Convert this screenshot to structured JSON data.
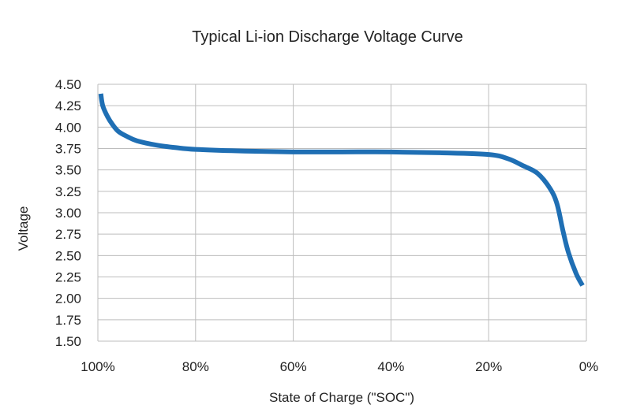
{
  "chart_data": {
    "type": "line",
    "title": "Typical Li-ion Discharge Voltage Curve",
    "xlabel": "State of Charge (\"SOC\")",
    "ylabel": "Voltage",
    "xlim": [
      100,
      0
    ],
    "ylim": [
      1.5,
      4.5
    ],
    "x_reversed": true,
    "xticks": [
      100,
      80,
      60,
      40,
      20,
      0
    ],
    "xtick_labels": [
      "100%",
      "80%",
      "60%",
      "40%",
      "20%",
      "0%"
    ],
    "yticks": [
      1.5,
      1.75,
      2.0,
      2.25,
      2.5,
      2.75,
      3.0,
      3.25,
      3.5,
      3.75,
      4.0,
      4.25,
      4.5
    ],
    "ytick_labels": [
      "1.50",
      "1.75",
      "2.00",
      "2.25",
      "2.50",
      "2.75",
      "3.00",
      "3.25",
      "3.50",
      "3.75",
      "4.00",
      "4.25",
      "4.50"
    ],
    "grid": true,
    "legend": "none",
    "series_color": "#1f6fb4",
    "series": [
      {
        "x": [
          99.4,
          99,
          98,
          97,
          95.8,
          94,
          92,
          88,
          84,
          80,
          70,
          60,
          50,
          40,
          30,
          20,
          16,
          13,
          10,
          7.4,
          6,
          4.8,
          3.7,
          2.1,
          0.8
        ],
        "y": [
          4.39,
          4.25,
          4.12,
          4.03,
          3.95,
          3.89,
          3.84,
          3.79,
          3.76,
          3.74,
          3.72,
          3.71,
          3.71,
          3.71,
          3.7,
          3.68,
          3.63,
          3.55,
          3.46,
          3.28,
          3.1,
          2.79,
          2.54,
          2.29,
          2.15
        ]
      }
    ]
  }
}
